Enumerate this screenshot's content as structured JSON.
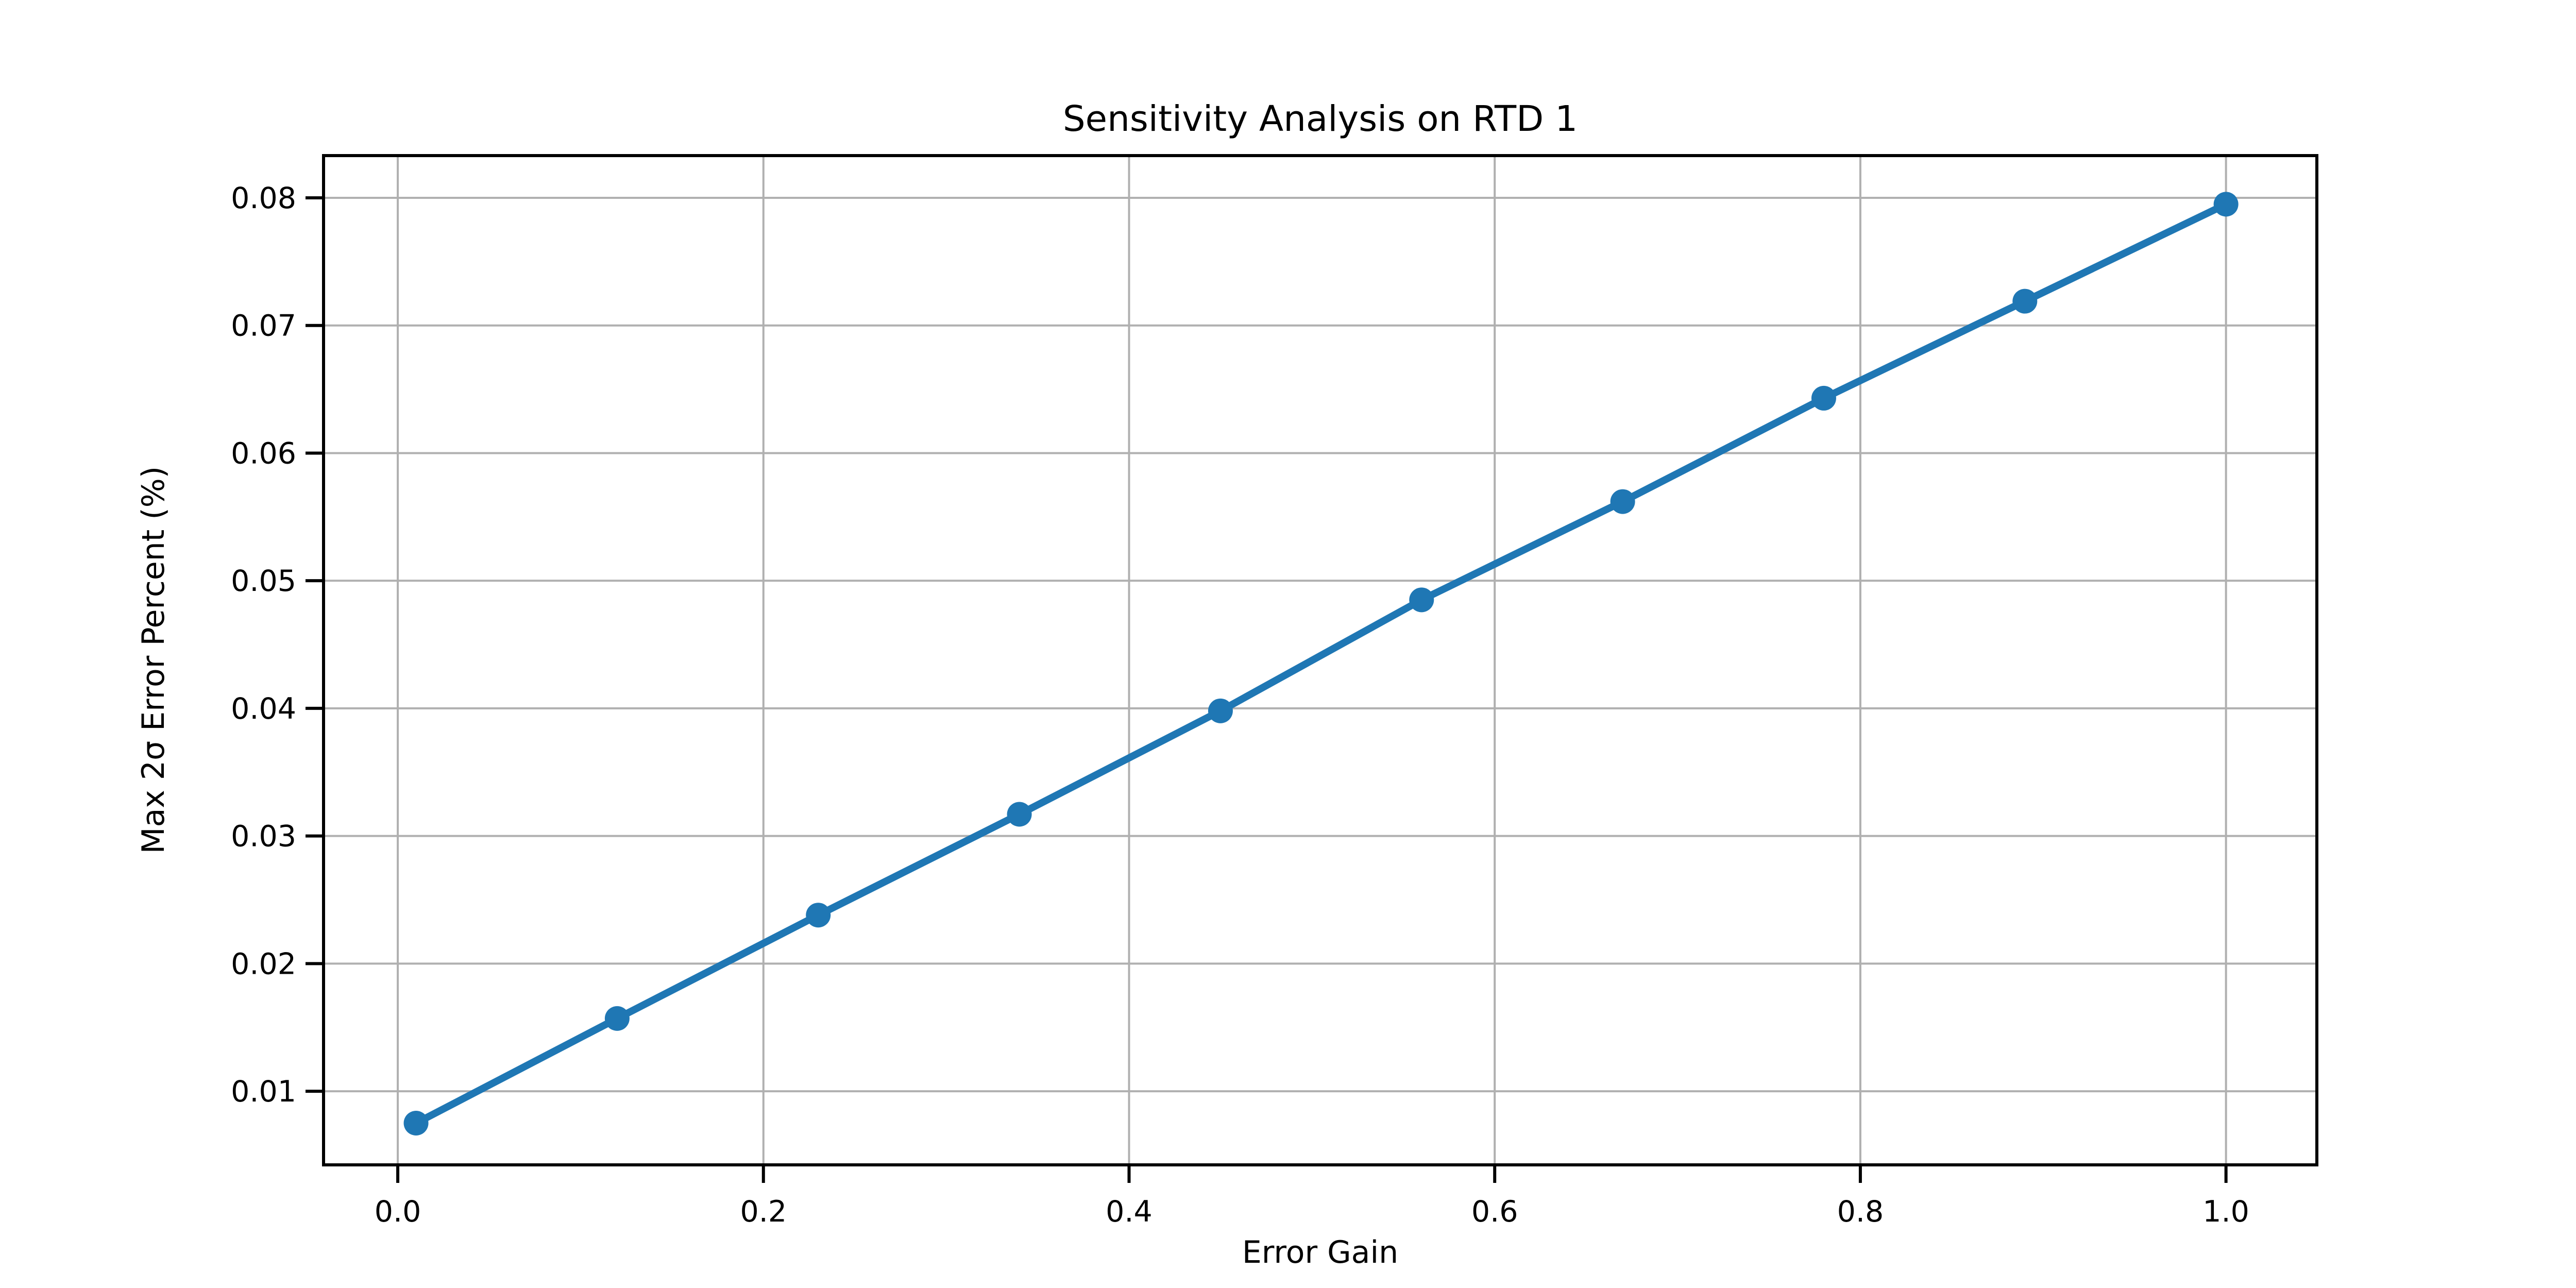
{
  "figure": {
    "background": "#ffffff"
  },
  "chart_data": {
    "type": "line",
    "title": "Sensitivity Analysis on RTD 1",
    "xlabel": "Error Gain",
    "ylabel": "Max 2σ Error Percent (%)",
    "x": [
      0.01,
      0.12,
      0.23,
      0.34,
      0.45,
      0.56,
      0.67,
      0.78,
      0.89,
      1.0
    ],
    "series": [
      {
        "name": "Max 2σ Error Percent",
        "values": [
          0.0075,
          0.0157,
          0.0238,
          0.0317,
          0.0398,
          0.0485,
          0.0562,
          0.0643,
          0.0719,
          0.0795
        ]
      }
    ],
    "xlim": [
      -0.0406,
      1.0497
    ],
    "ylim": [
      0.00423,
      0.08331
    ],
    "xticks": {
      "values": [
        0.0,
        0.2,
        0.4,
        0.6,
        0.8,
        1.0
      ],
      "labels": [
        "0.0",
        "0.2",
        "0.4",
        "0.6",
        "0.8",
        "1.0"
      ]
    },
    "yticks": {
      "values": [
        0.01,
        0.02,
        0.03,
        0.04,
        0.05,
        0.06,
        0.07,
        0.08
      ],
      "labels": [
        "0.01",
        "0.02",
        "0.03",
        "0.04",
        "0.05",
        "0.06",
        "0.07",
        "0.08"
      ]
    },
    "grid": true,
    "legend_position": "none",
    "colors": {
      "line": "#1f77b4",
      "marker": "#1f77b4",
      "grid": "#b0b0b0",
      "spine": "#000000",
      "tick_text": "#000000",
      "background": "#ffffff"
    }
  }
}
